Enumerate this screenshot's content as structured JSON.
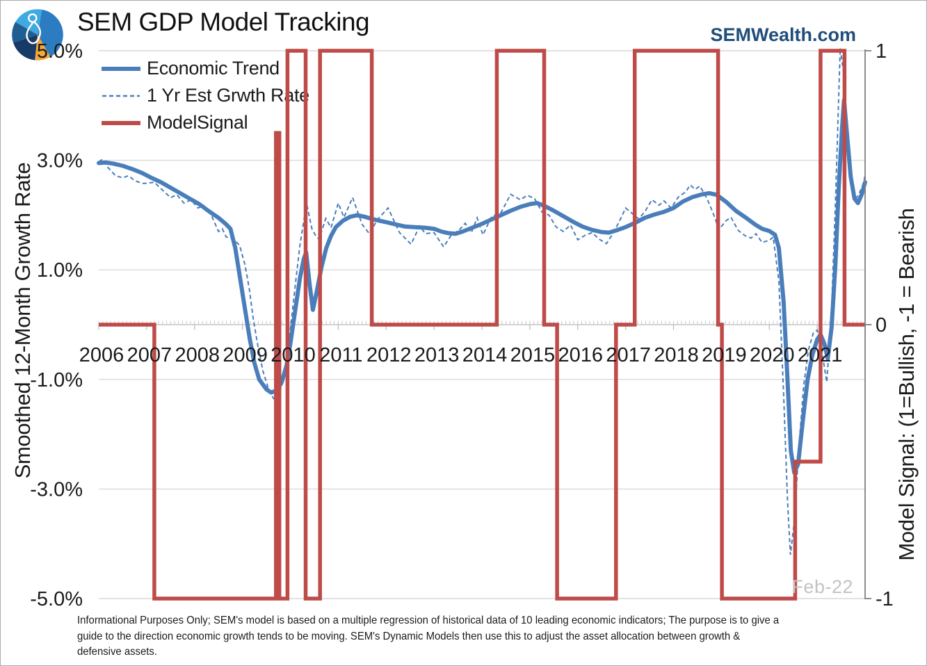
{
  "header": {
    "title": "SEM GDP Model Tracking",
    "website": "SEMWealth.com",
    "website_color": "#1f4e7a",
    "logo": {
      "name": "sem-pie-logo",
      "wedge_colors": [
        "#3fa9e1",
        "#2b7cc1",
        "#f4a83b",
        "#173a66",
        "#1f5e93"
      ],
      "figure_color": "#ffffff"
    }
  },
  "footer": {
    "lines": [
      "Informational Purposes Only; SEM's model is based on a multiple regression of historical data of 10 leading economic indicators; The purpose is to give a",
      "guide to the direction economic growth tends to be moving. SEM's Dynamic Models then use this to adjust the asset allocation between growth &",
      "defensive assets."
    ]
  },
  "chart_data": {
    "type": "line",
    "title": "SEM GDP Model Tracking",
    "annotation": "Feb-22",
    "grid": true,
    "legend_position": "top-left-inside",
    "colors": {
      "blue": "#4a7ebb",
      "red": "#be4b48",
      "gridline": "#d9d9d9",
      "zero_line": "#c4c4c4",
      "axis_line": "#7f7f7f"
    },
    "x_axis": {
      "labels": [
        "2006",
        "2007",
        "2008",
        "2009",
        "2010",
        "2011",
        "2012",
        "2013",
        "2014",
        "2015",
        "2016",
        "2017",
        "2018",
        "2019",
        "2020",
        "2021"
      ],
      "range": [
        2006.0,
        2022.0
      ],
      "minor_tick": "monthly",
      "major_tick": "yearly"
    },
    "left_axis": {
      "label": "Smoothed 12-Month Growth Rate",
      "ticks": [
        "5.0%",
        "3.0%",
        "1.0%",
        "-1.0%",
        "-3.0%",
        "-5.0%"
      ],
      "tick_values": [
        5,
        3,
        1,
        -1,
        -3,
        -5
      ],
      "range": [
        -5,
        5
      ]
    },
    "right_axis": {
      "label": "Model Signal: (1=Bullish, -1 = Bearish",
      "ticks": [
        "1",
        "0",
        "-1"
      ],
      "tick_values": [
        1,
        0,
        -1
      ],
      "range": [
        -1,
        1
      ]
    },
    "series": [
      {
        "name": "Economic Trend",
        "axis": "left",
        "style": "solid",
        "color": "#4a7ebb",
        "width": 6,
        "points": [
          [
            2006.0,
            2.95
          ],
          [
            2006.15,
            2.96
          ],
          [
            2006.3,
            2.94
          ],
          [
            2006.5,
            2.9
          ],
          [
            2006.7,
            2.84
          ],
          [
            2006.9,
            2.77
          ],
          [
            2007.1,
            2.68
          ],
          [
            2007.3,
            2.6
          ],
          [
            2007.5,
            2.5
          ],
          [
            2007.7,
            2.4
          ],
          [
            2007.9,
            2.3
          ],
          [
            2008.1,
            2.2
          ],
          [
            2008.3,
            2.07
          ],
          [
            2008.5,
            1.95
          ],
          [
            2008.65,
            1.84
          ],
          [
            2008.75,
            1.75
          ],
          [
            2008.85,
            1.4
          ],
          [
            2008.95,
            0.85
          ],
          [
            2009.05,
            0.3
          ],
          [
            2009.15,
            -0.25
          ],
          [
            2009.25,
            -0.7
          ],
          [
            2009.35,
            -1.0
          ],
          [
            2009.5,
            -1.18
          ],
          [
            2009.6,
            -1.24
          ],
          [
            2009.72,
            -1.2
          ],
          [
            2009.82,
            -1.05
          ],
          [
            2009.92,
            -0.75
          ],
          [
            2010.0,
            -0.35
          ],
          [
            2010.1,
            0.25
          ],
          [
            2010.2,
            0.85
          ],
          [
            2010.28,
            1.2
          ],
          [
            2010.33,
            1.32
          ],
          [
            2010.4,
            0.75
          ],
          [
            2010.47,
            0.27
          ],
          [
            2010.55,
            0.6
          ],
          [
            2010.65,
            1.05
          ],
          [
            2010.75,
            1.4
          ],
          [
            2010.85,
            1.62
          ],
          [
            2010.95,
            1.78
          ],
          [
            2011.1,
            1.9
          ],
          [
            2011.25,
            1.97
          ],
          [
            2011.4,
            2.0
          ],
          [
            2011.55,
            1.97
          ],
          [
            2011.7,
            1.93
          ],
          [
            2011.85,
            1.9
          ],
          [
            2012.0,
            1.87
          ],
          [
            2012.2,
            1.83
          ],
          [
            2012.4,
            1.79
          ],
          [
            2012.6,
            1.78
          ],
          [
            2012.8,
            1.77
          ],
          [
            2013.0,
            1.75
          ],
          [
            2013.15,
            1.7
          ],
          [
            2013.3,
            1.67
          ],
          [
            2013.45,
            1.66
          ],
          [
            2013.6,
            1.7
          ],
          [
            2013.8,
            1.77
          ],
          [
            2014.0,
            1.84
          ],
          [
            2014.2,
            1.92
          ],
          [
            2014.4,
            2.0
          ],
          [
            2014.6,
            2.08
          ],
          [
            2014.8,
            2.15
          ],
          [
            2015.0,
            2.2
          ],
          [
            2015.15,
            2.22
          ],
          [
            2015.3,
            2.17
          ],
          [
            2015.5,
            2.08
          ],
          [
            2015.7,
            1.98
          ],
          [
            2015.9,
            1.88
          ],
          [
            2016.1,
            1.79
          ],
          [
            2016.3,
            1.73
          ],
          [
            2016.5,
            1.69
          ],
          [
            2016.65,
            1.68
          ],
          [
            2016.8,
            1.72
          ],
          [
            2017.0,
            1.78
          ],
          [
            2017.2,
            1.86
          ],
          [
            2017.4,
            1.95
          ],
          [
            2017.6,
            2.01
          ],
          [
            2017.8,
            2.06
          ],
          [
            2018.0,
            2.13
          ],
          [
            2018.2,
            2.25
          ],
          [
            2018.4,
            2.33
          ],
          [
            2018.6,
            2.38
          ],
          [
            2018.75,
            2.4
          ],
          [
            2018.9,
            2.37
          ],
          [
            2019.1,
            2.24
          ],
          [
            2019.3,
            2.08
          ],
          [
            2019.5,
            1.96
          ],
          [
            2019.7,
            1.83
          ],
          [
            2019.85,
            1.75
          ],
          [
            2020.0,
            1.71
          ],
          [
            2020.12,
            1.64
          ],
          [
            2020.2,
            1.4
          ],
          [
            2020.3,
            0.4
          ],
          [
            2020.38,
            -1.0
          ],
          [
            2020.45,
            -2.3
          ],
          [
            2020.52,
            -2.7
          ],
          [
            2020.6,
            -2.55
          ],
          [
            2020.7,
            -1.75
          ],
          [
            2020.8,
            -1.0
          ],
          [
            2020.9,
            -0.55
          ],
          [
            2021.0,
            -0.27
          ],
          [
            2021.07,
            -0.18
          ],
          [
            2021.15,
            -0.35
          ],
          [
            2021.22,
            -0.62
          ],
          [
            2021.3,
            -0.05
          ],
          [
            2021.38,
            1.1
          ],
          [
            2021.45,
            2.5
          ],
          [
            2021.52,
            3.6
          ],
          [
            2021.56,
            4.1
          ],
          [
            2021.63,
            3.4
          ],
          [
            2021.7,
            2.7
          ],
          [
            2021.78,
            2.3
          ],
          [
            2021.85,
            2.22
          ],
          [
            2021.93,
            2.38
          ],
          [
            2022.0,
            2.6
          ]
        ]
      },
      {
        "name": "1 Yr Est Grwth Rate",
        "axis": "left",
        "style": "dashed",
        "color": "#4a7ebb",
        "width": 2,
        "points": [
          [
            2006.0,
            2.97
          ],
          [
            2006.08,
            3.02
          ],
          [
            2006.2,
            2.86
          ],
          [
            2006.35,
            2.72
          ],
          [
            2006.5,
            2.68
          ],
          [
            2006.62,
            2.72
          ],
          [
            2006.75,
            2.63
          ],
          [
            2006.9,
            2.58
          ],
          [
            2007.0,
            2.58
          ],
          [
            2007.16,
            2.6
          ],
          [
            2007.35,
            2.44
          ],
          [
            2007.5,
            2.32
          ],
          [
            2007.63,
            2.37
          ],
          [
            2007.78,
            2.22
          ],
          [
            2007.93,
            2.28
          ],
          [
            2008.07,
            2.13
          ],
          [
            2008.2,
            2.17
          ],
          [
            2008.36,
            1.98
          ],
          [
            2008.5,
            1.7
          ],
          [
            2008.58,
            1.75
          ],
          [
            2008.66,
            1.6
          ],
          [
            2008.8,
            1.57
          ],
          [
            2008.94,
            1.45
          ],
          [
            2009.05,
            1.1
          ],
          [
            2009.14,
            0.67
          ],
          [
            2009.23,
            0.08
          ],
          [
            2009.33,
            -0.43
          ],
          [
            2009.43,
            -0.85
          ],
          [
            2009.55,
            -1.19
          ],
          [
            2009.65,
            -1.35
          ],
          [
            2009.72,
            -1.36
          ],
          [
            2009.82,
            -1.12
          ],
          [
            2009.9,
            -0.75
          ],
          [
            2010.0,
            -0.1
          ],
          [
            2010.1,
            0.7
          ],
          [
            2010.2,
            1.45
          ],
          [
            2010.3,
            2.0
          ],
          [
            2010.35,
            2.17
          ],
          [
            2010.45,
            1.75
          ],
          [
            2010.52,
            1.64
          ],
          [
            2010.6,
            1.56
          ],
          [
            2010.74,
            1.94
          ],
          [
            2010.85,
            1.77
          ],
          [
            2011.0,
            2.22
          ],
          [
            2011.12,
            1.96
          ],
          [
            2011.3,
            2.32
          ],
          [
            2011.5,
            1.83
          ],
          [
            2011.65,
            1.66
          ],
          [
            2011.82,
            1.92
          ],
          [
            2012.04,
            2.13
          ],
          [
            2012.28,
            1.68
          ],
          [
            2012.52,
            1.47
          ],
          [
            2012.7,
            1.8
          ],
          [
            2012.82,
            1.66
          ],
          [
            2013.0,
            1.68
          ],
          [
            2013.2,
            1.42
          ],
          [
            2013.35,
            1.62
          ],
          [
            2013.55,
            1.75
          ],
          [
            2013.65,
            1.85
          ],
          [
            2013.78,
            1.68
          ],
          [
            2013.9,
            1.95
          ],
          [
            2014.02,
            1.64
          ],
          [
            2014.2,
            1.97
          ],
          [
            2014.4,
            2.05
          ],
          [
            2014.6,
            2.38
          ],
          [
            2014.8,
            2.28
          ],
          [
            2014.95,
            2.36
          ],
          [
            2015.1,
            2.3
          ],
          [
            2015.25,
            2.06
          ],
          [
            2015.4,
            2.0
          ],
          [
            2015.55,
            1.78
          ],
          [
            2015.7,
            1.7
          ],
          [
            2015.85,
            1.82
          ],
          [
            2016.0,
            1.55
          ],
          [
            2016.15,
            1.63
          ],
          [
            2016.3,
            1.68
          ],
          [
            2016.45,
            1.56
          ],
          [
            2016.6,
            1.48
          ],
          [
            2016.75,
            1.68
          ],
          [
            2016.9,
            1.94
          ],
          [
            2017.0,
            2.13
          ],
          [
            2017.15,
            2.02
          ],
          [
            2017.27,
            1.93
          ],
          [
            2017.4,
            2.06
          ],
          [
            2017.55,
            2.28
          ],
          [
            2017.7,
            2.18
          ],
          [
            2017.8,
            2.26
          ],
          [
            2017.95,
            2.13
          ],
          [
            2018.1,
            2.33
          ],
          [
            2018.25,
            2.42
          ],
          [
            2018.35,
            2.55
          ],
          [
            2018.45,
            2.47
          ],
          [
            2018.55,
            2.53
          ],
          [
            2018.7,
            2.3
          ],
          [
            2018.82,
            2.05
          ],
          [
            2018.95,
            1.74
          ],
          [
            2019.1,
            1.9
          ],
          [
            2019.2,
            1.96
          ],
          [
            2019.35,
            1.72
          ],
          [
            2019.5,
            1.62
          ],
          [
            2019.62,
            1.58
          ],
          [
            2019.72,
            1.66
          ],
          [
            2019.85,
            1.5
          ],
          [
            2020.0,
            1.54
          ],
          [
            2020.08,
            1.6
          ],
          [
            2020.2,
            0.8
          ],
          [
            2020.3,
            -1.3
          ],
          [
            2020.38,
            -3.2
          ],
          [
            2020.44,
            -4.2
          ],
          [
            2020.52,
            -3.6
          ],
          [
            2020.62,
            -2.2
          ],
          [
            2020.72,
            -1.1
          ],
          [
            2020.82,
            -0.45
          ],
          [
            2020.92,
            -0.15
          ],
          [
            2021.0,
            -0.1
          ],
          [
            2021.1,
            -0.5
          ],
          [
            2021.2,
            -1.05
          ],
          [
            2021.3,
            0.3
          ],
          [
            2021.38,
            2.2
          ],
          [
            2021.44,
            3.9
          ],
          [
            2021.48,
            5.05
          ],
          [
            2021.55,
            4.6
          ],
          [
            2021.62,
            3.6
          ],
          [
            2021.7,
            2.75
          ],
          [
            2021.8,
            2.28
          ],
          [
            2021.88,
            2.4
          ],
          [
            2021.95,
            2.55
          ],
          [
            2022.0,
            2.72
          ]
        ]
      },
      {
        "name": "ModelSignal",
        "axis": "right",
        "style": "step",
        "color": "#be4b48",
        "width": 5.5,
        "points": [
          [
            2006.0,
            0
          ],
          [
            2007.16,
            -1
          ],
          [
            2009.7,
            0.7
          ],
          [
            2009.77,
            -1
          ],
          [
            2009.94,
            1
          ],
          [
            2010.32,
            -1
          ],
          [
            2010.62,
            1
          ],
          [
            2011.7,
            0
          ],
          [
            2014.31,
            1
          ],
          [
            2015.3,
            0
          ],
          [
            2015.57,
            -1
          ],
          [
            2016.8,
            0
          ],
          [
            2017.19,
            1
          ],
          [
            2018.93,
            0
          ],
          [
            2019.01,
            -1
          ],
          [
            2020.54,
            -0.5
          ],
          [
            2021.07,
            1
          ],
          [
            2021.57,
            0
          ]
        ],
        "end": 2022.0
      }
    ]
  }
}
